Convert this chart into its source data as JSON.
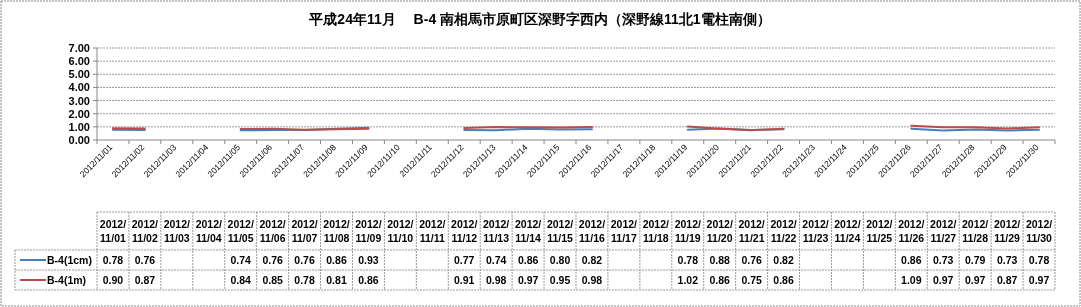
{
  "chart_data": {
    "type": "line",
    "title": "平成24年11月　 B-4 南相馬市原町区深野字西内（深野線11北1電柱南側）",
    "categories": [
      "2012/11/01",
      "2012/11/02",
      "2012/11/03",
      "2012/11/04",
      "2012/11/05",
      "2012/11/06",
      "2012/11/07",
      "2012/11/08",
      "2012/11/09",
      "2012/11/10",
      "2012/11/11",
      "2012/11/12",
      "2012/11/13",
      "2012/11/14",
      "2012/11/15",
      "2012/11/16",
      "2012/11/17",
      "2012/11/18",
      "2012/11/19",
      "2012/11/20",
      "2012/11/21",
      "2012/11/22",
      "2012/11/23",
      "2012/11/24",
      "2012/11/25",
      "2012/11/26",
      "2012/11/27",
      "2012/11/28",
      "2012/11/29",
      "2012/11/30"
    ],
    "series": [
      {
        "name": "B-4(1cm)",
        "color": "#4a7ebb",
        "values": [
          0.78,
          0.76,
          null,
          null,
          0.74,
          0.76,
          0.76,
          0.86,
          0.93,
          null,
          null,
          0.77,
          0.74,
          0.86,
          0.8,
          0.82,
          null,
          null,
          0.78,
          0.88,
          0.76,
          0.82,
          null,
          null,
          null,
          0.86,
          0.73,
          0.79,
          0.73,
          0.78
        ],
        "value_labels": [
          "0.78",
          "0.76",
          null,
          null,
          "0.74",
          "0.76",
          "0.76",
          "0.86",
          "0.93",
          null,
          null,
          "0.77",
          "0.74",
          "0.86",
          "0.80",
          "0.82",
          null,
          null,
          "0.78",
          "0.88",
          "0.76",
          "0.82",
          null,
          null,
          null,
          "0.86",
          "0.73",
          "0.79",
          "0.73",
          "0.78"
        ]
      },
      {
        "name": "B-4(1m)",
        "color": "#be4b48",
        "values": [
          0.9,
          0.87,
          null,
          null,
          0.84,
          0.85,
          0.78,
          0.81,
          0.86,
          null,
          null,
          0.91,
          0.98,
          0.97,
          0.95,
          0.98,
          null,
          null,
          1.02,
          0.86,
          0.75,
          0.86,
          null,
          null,
          null,
          1.09,
          0.97,
          0.97,
          0.87,
          0.97
        ],
        "value_labels": [
          "0.90",
          "0.87",
          null,
          null,
          "0.84",
          "0.85",
          "0.78",
          "0.81",
          "0.86",
          null,
          null,
          "0.91",
          "0.98",
          "0.97",
          "0.95",
          "0.98",
          null,
          null,
          "1.02",
          "0.86",
          "0.75",
          "0.86",
          null,
          null,
          null,
          "1.09",
          "0.97",
          "0.97",
          "0.87",
          "0.97"
        ]
      }
    ],
    "ylim": [
      0,
      7
    ],
    "yticks": [
      {
        "value": 0,
        "label": "0.00"
      },
      {
        "value": 1,
        "label": "1.00"
      },
      {
        "value": 2,
        "label": "2.00"
      },
      {
        "value": 3,
        "label": "3.00"
      },
      {
        "value": 4,
        "label": "4.00"
      },
      {
        "value": 5,
        "label": "5.00"
      },
      {
        "value": 6,
        "label": "6.00"
      },
      {
        "value": 7,
        "label": "7.00"
      }
    ],
    "grid": "y",
    "legend": "bottom",
    "line_style": "solid",
    "marker": "none"
  }
}
